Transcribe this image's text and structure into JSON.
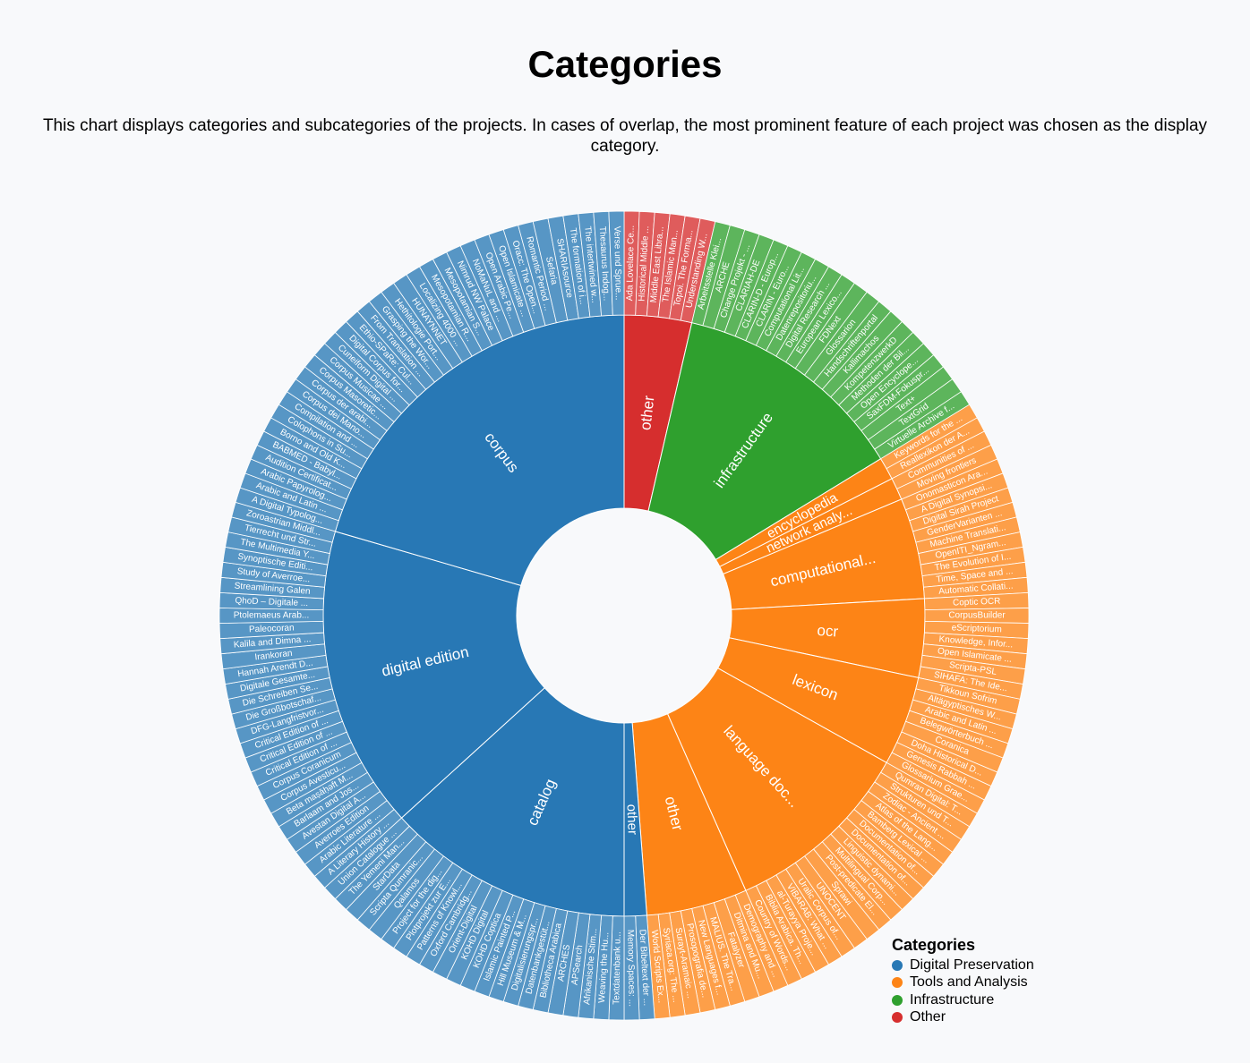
{
  "title": "Categories",
  "description": "This chart displays categories and subcategories of the projects. In cases of overlap, the most prominent feature of each project was chosen as the display category.",
  "legend": {
    "title": "Categories",
    "items": [
      {
        "label": "Digital Preservation",
        "color": "#2878b5"
      },
      {
        "label": "Tools and Analysis",
        "color": "#fd8416"
      },
      {
        "label": "Infrastructure",
        "color": "#2fa02e"
      },
      {
        "label": "Other",
        "color": "#d62e2e"
      }
    ]
  },
  "chart_data": {
    "type": "sunburst",
    "title": "Categories",
    "categories": [
      {
        "name": "Other",
        "color": "#d62e2e",
        "children": [
          {
            "name": "other",
            "projects": [
              "Ada Lovelace Ce...",
              "Historical Middle ...",
              "Middle East Libra...",
              "The Islamic Man...",
              "Topoi. The Forma...",
              "Understanding W..."
            ]
          }
        ]
      },
      {
        "name": "Infrastructure",
        "color": "#2fa02e",
        "children": [
          {
            "name": "infrastructure",
            "projects": [
              "Arbeitsstelle Klei...",
              "ARCHE",
              "Change Projekt - ...",
              "CLARIAH-DE",
              "CLARIN-D - Europ...",
              "CLARIN - Euro...",
              "Computational Lit...",
              "Datenrepositoriu...",
              "Digital Research ...",
              "European Lexico...",
              "FDNext",
              "Glossarion",
              "Handschriftenportal",
              "Kallimachos",
              "KompetenzwerkD",
              "Methoden der Bil...",
              "Open Encyclope...",
              "SaxFDM-Fokuspr...",
              "Text+",
              "TextGrid",
              "Virtuelle Archive f..."
            ]
          }
        ]
      },
      {
        "name": "Tools and Analysis",
        "color": "#fd8416",
        "children": [
          {
            "name": "encyclopedia",
            "projects": [
              "Keywords for the ...",
              "Reallexikon der A..."
            ]
          },
          {
            "name": "network analy...",
            "projects": [
              "Communities of ...",
              "Moving frontiers"
            ]
          },
          {
            "name": "computational...",
            "projects": [
              "Onomasticon Ara...",
              "A Digital Synopsi...",
              "Digital Sirah Project",
              "GenderVarianten ...",
              "Machine Translati...",
              "OpenITI_Ngram...",
              "The Evolution of I...",
              "Time, Space and ...",
              "Automatic Collati..."
            ]
          },
          {
            "name": "ocr",
            "projects": [
              "Coptic OCR",
              "CorpusBuilder",
              "eScriptorium",
              "Knowledge, Infor...",
              "Open Islamicate ...",
              "Scripta-PSL",
              "SIHAFA: The Ide..."
            ]
          },
          {
            "name": "lexicon",
            "projects": [
              "Tikkoun Sofrim",
              "Altägyptisches W...",
              "Arabic and Latin ...",
              "Belegwörterbuch ...",
              "Coranica",
              "Doha Historical D...",
              "Genesis Rabbah ...",
              "Glossarium Grae..."
            ]
          },
          {
            "name": "language doc...",
            "projects": [
              "Qumran Digital: T...",
              "Strukturen und T...",
              "Zodiac - Ancient ...",
              "Atlas of the Lang...",
              "Bamberg Lexical ...",
              "Documentation of...",
              "Documentation of...",
              "Linguistic dynami...",
              "Multilingual Corp...",
              "Post-predicate El...",
              "Sprawi",
              "UNOCENT",
              "Uralic Corpus of...",
              "VIBARAB: What ...",
              "al-Turayya Proje...",
              "Biblia Arabica. Th...",
              "Country of Words..."
            ]
          },
          {
            "name": "other",
            "projects": [
              "Demography and ...",
              "Ditmina and Mu...",
              "Fatalyzer",
              "MALIUS. The Tra...",
              "New Languages f...",
              "Prosopografia de...",
              "Surayt-Aramaic ...",
              "Syriaca.org: The ...",
              "World Scripts Ex..."
            ]
          }
        ]
      },
      {
        "name": "Digital Preservation",
        "color": "#2878b5",
        "children": [
          {
            "name": "other",
            "projects": [
              "Der Bibeltext der ...",
              "Memory Spaces: ..."
            ]
          },
          {
            "name": "catalog",
            "projects": [
              "Textdatenbank u...",
              "Weaving the Hu...",
              "Afrikanische Stim...",
              "APSearch",
              "ARCHES",
              "Bibliotheca Arabica",
              "Datenbankgestüt...",
              "Digitalisierungspr...",
              "Hill Museum & M...",
              "Islamic Painted P...",
              "KOHD Coptica",
              "KOHD Digital",
              "Orient-Digital",
              "Oxford Cambridg...",
              "Patterns of Knowl...",
              "Plotprojekt zur E...",
              "Project for the dig...",
              "Qalamos",
              "Scripta Qumranic...",
              "StarData",
              "The Yemeni Man...",
              "Union Catalogue ..."
            ]
          },
          {
            "name": "digital edition",
            "projects": [
              "A Literary History ...",
              "Arabic Literature ...",
              "Averroes Edition",
              "Avestan Digital A...",
              "Barlaam and Jos...",
              "Beta maṣāḥəft M...",
              "Corpus Avesticu...",
              "Corpus Coranicum",
              "Critical Edition of ...",
              "Critical Edition of ...",
              "Critical Edition of ...",
              "DFG-Langfristvor...",
              "Die Großbotschaf...",
              "Die Schreiben Se...",
              "Digitale Gesamte...",
              "Hannah Arendt D...",
              "Irankoran",
              "Kalila and Dimna ...",
              "Paleocoran",
              "Ptolemaeus Arab...",
              "QhoD – Digitale ...",
              "Streamlining Galen",
              "Study of Averroe...",
              "Synoptische Editi...",
              "The Multimedia Y...",
              "Tierrecht und Str...",
              "Zoroastrian Middl..."
            ]
          },
          {
            "name": "corpus",
            "projects": [
              "A Digital Typolog...",
              "Arabic and Latin ...",
              "Arabic Papyrolog...",
              "Audition Certificat...",
              "BABMED - Babyl...",
              "Borno and Old K...",
              "Colophons in Su...",
              "Compilation and ...",
              "Corpus dei Mano...",
              "Corpus der arabi...",
              "Corpus Masoretic...",
              "Corpus Musicae ...",
              "Cuneiform Digital ...",
              "Digital Corpus for...",
              "Ethio-SPaRe: Cul...",
              "From Translation ...",
              "Grasping the Wor...",
              "Hethitologie Port...",
              "HUNAYNNET",
              "Localizing 4000 ...",
              "Mesopotamian R...",
              "Mesopotamian S...",
              "Nimrud NW Palace",
              "NoMaNuL and ...",
              "Open Arabic Pe...",
              "Open Islamicate ...",
              "Oracc: The Open...",
              "Romantic Period ...",
              "Sefaria",
              "SHARIAsource",
              "The formation of i...",
              "The intertwined w...",
              "Thesaurus Indog...",
              "Verse und Sprue..."
            ]
          }
        ]
      }
    ]
  }
}
